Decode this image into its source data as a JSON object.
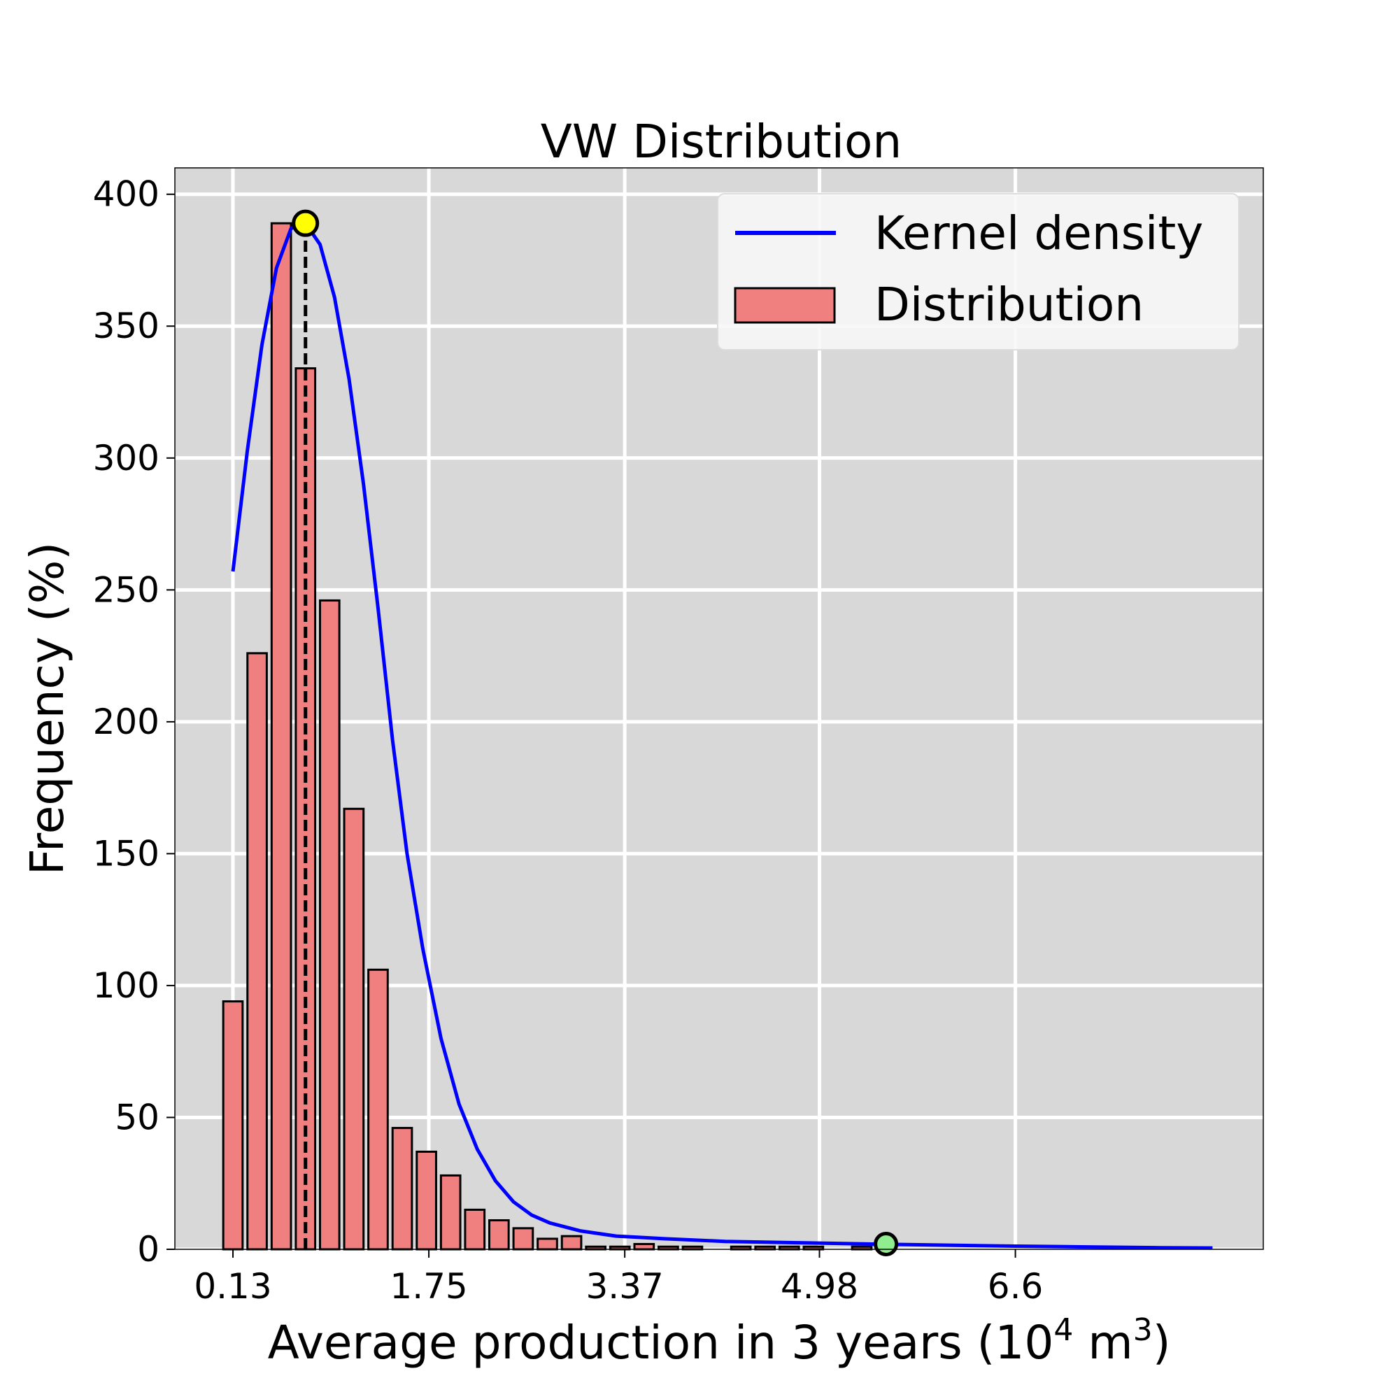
{
  "chart_data": {
    "type": "bar",
    "title": "VW Distribution",
    "xlabel": {
      "prefix": "Average production in 3 years (10",
      "exp1": "4",
      "middle": " m",
      "exp2": "3",
      "suffix": ")"
    },
    "ylabel": "Frequency (%)",
    "xlim": [
      -0.35,
      8.65
    ],
    "ylim": [
      0,
      410
    ],
    "grid": true,
    "background": "#d8d8d8",
    "x_ticks": [
      {
        "value": 0.13,
        "label": "0.13"
      },
      {
        "value": 1.75,
        "label": "1.75"
      },
      {
        "value": 3.37,
        "label": "3.37"
      },
      {
        "value": 4.98,
        "label": "4.98"
      },
      {
        "value": 6.6,
        "label": "6.6"
      }
    ],
    "y_ticks": [
      {
        "value": 0,
        "label": "0"
      },
      {
        "value": 50,
        "label": "50"
      },
      {
        "value": 100,
        "label": "100"
      },
      {
        "value": 150,
        "label": "150"
      },
      {
        "value": 200,
        "label": "200"
      },
      {
        "value": 250,
        "label": "250"
      },
      {
        "value": 300,
        "label": "300"
      },
      {
        "value": 350,
        "label": "350"
      },
      {
        "value": 400,
        "label": "400"
      }
    ],
    "bar_width": 0.16,
    "bars": [
      {
        "x": 0.13,
        "value": 94
      },
      {
        "x": 0.33,
        "value": 226
      },
      {
        "x": 0.53,
        "value": 389
      },
      {
        "x": 0.73,
        "value": 334
      },
      {
        "x": 0.93,
        "value": 246
      },
      {
        "x": 1.13,
        "value": 167
      },
      {
        "x": 1.33,
        "value": 106
      },
      {
        "x": 1.53,
        "value": 46
      },
      {
        "x": 1.73,
        "value": 37
      },
      {
        "x": 1.93,
        "value": 28
      },
      {
        "x": 2.13,
        "value": 15
      },
      {
        "x": 2.33,
        "value": 11
      },
      {
        "x": 2.53,
        "value": 8
      },
      {
        "x": 2.73,
        "value": 4
      },
      {
        "x": 2.93,
        "value": 5
      },
      {
        "x": 3.13,
        "value": 1
      },
      {
        "x": 3.33,
        "value": 1
      },
      {
        "x": 3.53,
        "value": 2
      },
      {
        "x": 3.73,
        "value": 1
      },
      {
        "x": 3.93,
        "value": 1
      },
      {
        "x": 4.13,
        "value": 0
      },
      {
        "x": 4.33,
        "value": 1
      },
      {
        "x": 4.53,
        "value": 1
      },
      {
        "x": 4.73,
        "value": 1
      },
      {
        "x": 4.93,
        "value": 1
      },
      {
        "x": 5.13,
        "value": 0
      },
      {
        "x": 5.33,
        "value": 1
      },
      {
        "x": 5.53,
        "value": 0
      },
      {
        "x": 5.73,
        "value": 0
      },
      {
        "x": 5.93,
        "value": 0
      }
    ],
    "kde": {
      "name": "Kernel density",
      "color": "#0000ff",
      "points": [
        [
          0.13,
          257
        ],
        [
          0.25,
          303
        ],
        [
          0.37,
          343
        ],
        [
          0.49,
          372
        ],
        [
          0.61,
          387
        ],
        [
          0.73,
          389
        ],
        [
          0.85,
          381
        ],
        [
          0.97,
          361
        ],
        [
          1.09,
          330
        ],
        [
          1.21,
          290
        ],
        [
          1.33,
          243
        ],
        [
          1.45,
          193
        ],
        [
          1.57,
          150
        ],
        [
          1.7,
          114
        ],
        [
          1.85,
          80
        ],
        [
          2.0,
          55
        ],
        [
          2.15,
          38
        ],
        [
          2.3,
          26
        ],
        [
          2.45,
          18
        ],
        [
          2.6,
          13
        ],
        [
          2.75,
          10
        ],
        [
          3.0,
          7
        ],
        [
          3.3,
          5
        ],
        [
          3.7,
          4
        ],
        [
          4.2,
          3
        ],
        [
          4.8,
          2.5
        ],
        [
          5.42,
          2
        ],
        [
          6.0,
          1.6
        ],
        [
          6.6,
          1.2
        ],
        [
          7.2,
          0.9
        ],
        [
          7.8,
          0.6
        ],
        [
          8.23,
          0.5
        ]
      ]
    },
    "histogram": {
      "name": "Distribution",
      "color": "#f08080",
      "edgecolor": "#000000"
    },
    "peak_marker": {
      "x": 0.73,
      "y": 389,
      "color": "#ffff00"
    },
    "tail_marker": {
      "x": 5.53,
      "y": 2,
      "color": "#90ee90"
    },
    "legend": {
      "placement": "top-right",
      "entries": [
        {
          "label": "Kernel density"
        },
        {
          "label": "Distribution"
        }
      ]
    }
  }
}
